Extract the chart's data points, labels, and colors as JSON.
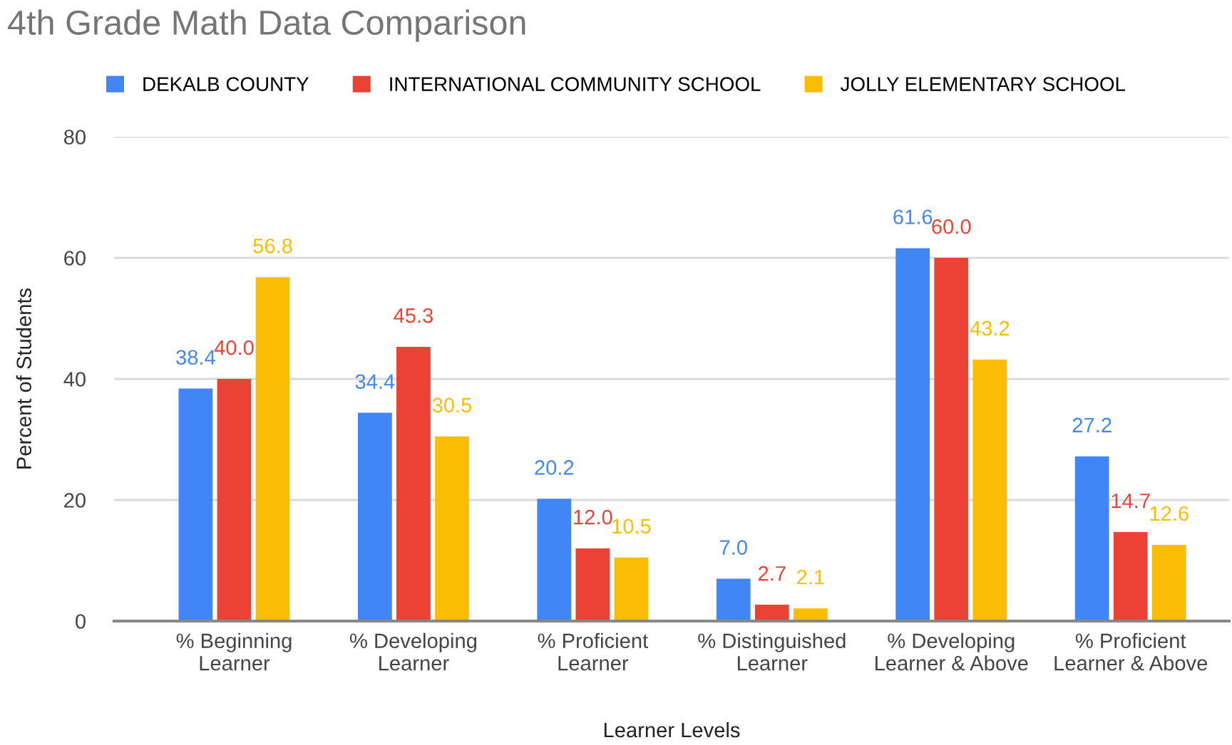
{
  "chart_data": {
    "type": "bar",
    "title": "4th Grade Math Data Comparison",
    "xlabel": "Learner Levels",
    "ylabel": "Percent of Students",
    "categories": [
      "% Beginning\nLearner",
      "% Developing\nLearner",
      "% Proficient\nLearner",
      "% Distinguished\nLearner",
      "% Developing\nLearner & Above",
      "% Proficient\nLearner & Above"
    ],
    "series": [
      {
        "name": "DEKALB COUNTY",
        "color": "#4285f4",
        "values": [
          38.4,
          34.4,
          20.2,
          7.0,
          61.6,
          27.2
        ],
        "value_labels": [
          "38.4",
          "34.4",
          "20.2",
          "7.0",
          "61.6",
          "27.2"
        ]
      },
      {
        "name": "INTERNATIONAL COMMUNITY SCHOOL",
        "color": "#ea4335",
        "values": [
          40.0,
          45.3,
          12.0,
          2.7,
          60.0,
          14.7
        ],
        "value_labels": [
          "40.0",
          "45.3",
          "12.0",
          "2.7",
          "60.0",
          "14.7"
        ]
      },
      {
        "name": "JOLLY ELEMENTARY SCHOOL",
        "color": "#fbbc04",
        "values": [
          56.8,
          30.5,
          10.5,
          2.1,
          43.2,
          12.6
        ],
        "value_labels": [
          "56.8",
          "30.5",
          "10.5",
          "2.1",
          "43.2",
          "12.6"
        ]
      }
    ],
    "ylim": [
      0,
      80
    ],
    "yticks": [
      0,
      20,
      40,
      60,
      80
    ],
    "grid": "y",
    "legend": "top"
  }
}
